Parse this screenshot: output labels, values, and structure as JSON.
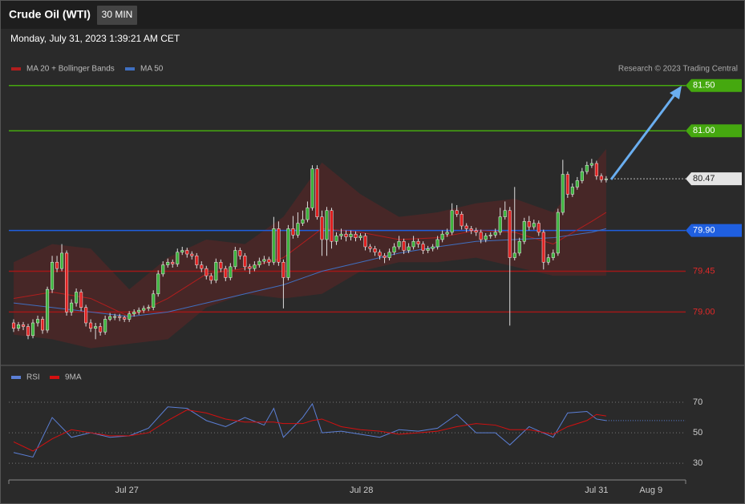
{
  "chart_data": [
    {
      "type": "candlestick",
      "title": "Crude Oil (WTI)",
      "interval": "30 MIN",
      "subtitle": "Monday, July 31, 2023 1:39:21 AM CET",
      "credit": "Research © 2023 Trading Central",
      "up_color": "#3cb33c",
      "down_color": "#e02020",
      "xlim": [
        -1,
        139.5
      ],
      "ylim": [
        78.42,
        81.86
      ],
      "candles": [
        [
          78.88,
          78.92,
          78.78,
          78.82
        ],
        [
          78.82,
          78.89,
          78.79,
          78.86
        ],
        [
          78.86,
          78.89,
          78.8,
          78.84
        ],
        [
          78.84,
          78.87,
          78.7,
          78.74
        ],
        [
          78.74,
          78.92,
          78.71,
          78.88
        ],
        [
          78.88,
          78.96,
          78.84,
          78.92
        ],
        [
          78.92,
          78.95,
          78.76,
          78.8
        ],
        [
          78.8,
          79.28,
          78.77,
          79.25
        ],
        [
          79.25,
          79.62,
          79.21,
          79.55
        ],
        [
          79.55,
          79.62,
          79.44,
          79.48
        ],
        [
          79.48,
          79.75,
          79.45,
          79.65
        ],
        [
          79.65,
          79.68,
          78.96,
          79.0
        ],
        [
          79.0,
          79.14,
          78.96,
          79.1
        ],
        [
          79.1,
          79.26,
          79.06,
          79.22
        ],
        [
          79.22,
          79.25,
          79.01,
          79.05
        ],
        [
          79.05,
          79.08,
          78.84,
          78.88
        ],
        [
          78.88,
          78.92,
          78.78,
          78.82
        ],
        [
          78.82,
          78.88,
          78.7,
          78.84
        ],
        [
          78.84,
          78.88,
          78.74,
          78.78
        ],
        [
          78.78,
          78.96,
          78.75,
          78.92
        ],
        [
          78.92,
          78.99,
          78.9,
          78.95
        ],
        [
          78.95,
          78.98,
          78.91,
          78.95
        ],
        [
          78.95,
          78.98,
          78.9,
          78.94
        ],
        [
          78.94,
          78.96,
          78.89,
          78.92
        ],
        [
          78.92,
          79.01,
          78.89,
          78.98
        ],
        [
          78.98,
          79.03,
          78.95,
          79.0
        ],
        [
          79.0,
          79.05,
          78.97,
          79.02
        ],
        [
          79.02,
          79.07,
          78.99,
          79.04
        ],
        [
          79.04,
          79.08,
          79.01,
          79.05
        ],
        [
          79.05,
          79.24,
          79.02,
          79.2
        ],
        [
          79.2,
          79.46,
          79.17,
          79.42
        ],
        [
          79.42,
          79.56,
          79.39,
          79.52
        ],
        [
          79.52,
          79.59,
          79.49,
          79.55
        ],
        [
          79.55,
          79.58,
          79.49,
          79.53
        ],
        [
          79.53,
          79.7,
          79.5,
          79.66
        ],
        [
          79.66,
          79.72,
          79.63,
          79.68
        ],
        [
          79.68,
          79.71,
          79.6,
          79.64
        ],
        [
          79.64,
          79.67,
          79.58,
          79.62
        ],
        [
          79.62,
          79.65,
          79.48,
          79.52
        ],
        [
          79.52,
          79.56,
          79.44,
          79.48
        ],
        [
          79.48,
          79.51,
          79.36,
          79.4
        ],
        [
          79.4,
          79.43,
          79.31,
          79.35
        ],
        [
          79.35,
          79.59,
          79.32,
          79.55
        ],
        [
          79.55,
          79.58,
          79.44,
          79.48
        ],
        [
          79.48,
          79.51,
          79.34,
          79.38
        ],
        [
          79.38,
          79.54,
          79.35,
          79.5
        ],
        [
          79.5,
          79.72,
          79.47,
          79.68
        ],
        [
          79.68,
          79.71,
          79.58,
          79.62
        ],
        [
          79.62,
          79.65,
          79.46,
          79.5
        ],
        [
          79.5,
          79.53,
          79.42,
          79.48
        ],
        [
          79.48,
          79.56,
          79.45,
          79.52
        ],
        [
          79.52,
          79.6,
          79.49,
          79.56
        ],
        [
          79.56,
          79.62,
          79.53,
          79.58
        ],
        [
          79.58,
          79.61,
          79.51,
          79.55
        ],
        [
          79.55,
          80.05,
          79.52,
          79.92
        ],
        [
          79.92,
          80.0,
          79.51,
          79.55
        ],
        [
          79.55,
          79.58,
          79.04,
          79.38
        ],
        [
          79.38,
          79.96,
          79.35,
          79.92
        ],
        [
          79.92,
          80.06,
          79.81,
          79.85
        ],
        [
          79.85,
          80.1,
          79.82,
          79.98
        ],
        [
          79.98,
          80.12,
          79.95,
          80.02
        ],
        [
          80.02,
          80.22,
          79.99,
          80.15
        ],
        [
          80.15,
          80.62,
          80.12,
          80.58
        ],
        [
          80.58,
          80.62,
          80.02,
          80.05
        ],
        [
          80.05,
          80.12,
          79.62,
          79.8
        ],
        [
          79.8,
          80.16,
          79.62,
          80.12
        ],
        [
          80.12,
          80.15,
          79.7,
          79.78
        ],
        [
          79.78,
          79.88,
          79.74,
          79.84
        ],
        [
          79.84,
          79.92,
          79.8,
          79.86
        ],
        [
          79.86,
          79.9,
          79.78,
          79.83
        ],
        [
          79.83,
          79.9,
          79.79,
          79.86
        ],
        [
          79.86,
          79.89,
          79.78,
          79.82
        ],
        [
          79.82,
          79.87,
          79.79,
          79.84
        ],
        [
          79.84,
          79.87,
          79.68,
          79.72
        ],
        [
          79.72,
          79.75,
          79.66,
          79.7
        ],
        [
          79.7,
          79.73,
          79.62,
          79.66
        ],
        [
          79.66,
          79.69,
          79.58,
          79.62
        ],
        [
          79.62,
          79.65,
          79.54,
          79.6
        ],
        [
          79.6,
          79.7,
          79.57,
          79.66
        ],
        [
          79.66,
          79.76,
          79.63,
          79.72
        ],
        [
          79.72,
          79.84,
          79.69,
          79.78
        ],
        [
          79.78,
          79.81,
          79.64,
          79.68
        ],
        [
          79.68,
          79.76,
          79.65,
          79.72
        ],
        [
          79.72,
          79.84,
          79.69,
          79.78
        ],
        [
          79.78,
          79.81,
          79.71,
          79.75
        ],
        [
          79.75,
          79.78,
          79.64,
          79.68
        ],
        [
          79.68,
          79.73,
          79.65,
          79.7
        ],
        [
          79.7,
          79.75,
          79.67,
          79.72
        ],
        [
          79.72,
          79.84,
          79.69,
          79.8
        ],
        [
          79.8,
          79.9,
          79.77,
          79.86
        ],
        [
          79.86,
          79.92,
          79.83,
          79.88
        ],
        [
          79.88,
          80.2,
          79.85,
          80.12
        ],
        [
          80.12,
          80.18,
          80.05,
          80.08
        ],
        [
          80.08,
          80.11,
          79.91,
          79.95
        ],
        [
          79.95,
          79.98,
          79.88,
          79.92
        ],
        [
          79.92,
          79.95,
          79.86,
          79.9
        ],
        [
          79.9,
          79.93,
          79.84,
          79.88
        ],
        [
          79.88,
          79.91,
          79.76,
          79.8
        ],
        [
          79.8,
          79.87,
          79.77,
          79.84
        ],
        [
          79.84,
          79.88,
          79.81,
          79.85
        ],
        [
          79.85,
          79.92,
          79.82,
          79.88
        ],
        [
          79.88,
          80.15,
          79.85,
          80.05
        ],
        [
          80.05,
          80.22,
          80.02,
          80.12
        ],
        [
          80.12,
          80.16,
          78.85,
          79.6
        ],
        [
          79.6,
          80.38,
          79.57,
          79.65
        ],
        [
          79.65,
          79.82,
          79.62,
          79.78
        ],
        [
          79.78,
          80.04,
          79.75,
          80.0
        ],
        [
          80.0,
          80.06,
          79.9,
          79.94
        ],
        [
          79.94,
          80.02,
          79.91,
          79.98
        ],
        [
          79.98,
          80.01,
          79.84,
          79.88
        ],
        [
          79.88,
          79.91,
          79.47,
          79.55
        ],
        [
          79.55,
          79.64,
          79.52,
          79.6
        ],
        [
          79.6,
          79.69,
          79.57,
          79.65
        ],
        [
          79.65,
          80.14,
          79.62,
          80.1
        ],
        [
          80.1,
          80.68,
          80.07,
          80.52
        ],
        [
          80.52,
          80.55,
          80.26,
          80.3
        ],
        [
          80.3,
          80.42,
          80.27,
          80.38
        ],
        [
          80.38,
          80.49,
          80.35,
          80.45
        ],
        [
          80.45,
          80.59,
          80.42,
          80.55
        ],
        [
          80.55,
          80.66,
          80.52,
          80.62
        ],
        [
          80.62,
          80.69,
          80.59,
          80.64
        ],
        [
          80.64,
          80.67,
          80.46,
          80.5
        ],
        [
          80.5,
          80.53,
          80.43,
          80.46
        ],
        [
          80.46,
          80.5,
          80.43,
          80.47
        ]
      ],
      "overlays": {
        "x": [
          0,
          8,
          16,
          24,
          32,
          40,
          48,
          56,
          64,
          72,
          80,
          88,
          96,
          104,
          112,
          120,
          123
        ],
        "series": [
          {
            "name": "MA 20 + Bollinger Bands",
            "color": "#b01e1e",
            "values": [
              79.15,
              79.22,
              79.15,
              78.95,
              79.15,
              79.42,
              79.48,
              79.6,
              79.92,
              79.88,
              79.8,
              79.82,
              79.9,
              79.88,
              79.75,
              80.0,
              80.1
            ],
            "upper": [
              79.55,
              79.75,
              79.7,
              79.25,
              79.6,
              79.8,
              79.75,
              80.05,
              80.65,
              80.3,
              80.05,
              80.1,
              80.2,
              80.25,
              80.1,
              80.6,
              80.8
            ],
            "lower": [
              78.75,
              78.7,
              78.6,
              78.65,
              78.7,
              79.05,
              79.2,
              79.15,
              79.2,
              79.45,
              79.55,
              79.55,
              79.6,
              79.5,
              79.4,
              79.4,
              79.4
            ]
          },
          {
            "name": "MA 50",
            "color": "#3f6fc0",
            "values": [
              79.1,
              79.05,
              79.0,
              78.95,
              79.0,
              79.1,
              79.2,
              79.3,
              79.45,
              79.55,
              79.65,
              79.72,
              79.78,
              79.8,
              79.82,
              79.88,
              79.92
            ]
          }
        ]
      },
      "levels": [
        {
          "value": 81.5,
          "label": "81.50",
          "color": "#45a80f",
          "text_color": "#ffffff",
          "style": "box",
          "line": "solid"
        },
        {
          "value": 81.0,
          "label": "81.00",
          "color": "#45a80f",
          "text_color": "#ffffff",
          "style": "box",
          "line": "solid"
        },
        {
          "value": 80.47,
          "label": "80.47",
          "color": "#e4e4e4",
          "text_color": "#222222",
          "style": "box",
          "line": "dotted"
        },
        {
          "value": 79.9,
          "label": "79.90",
          "color": "#1f5fe0",
          "text_color": "#ffffff",
          "style": "box",
          "line": "solid"
        },
        {
          "value": 79.45,
          "label": "79.45",
          "color": "#a01818",
          "text_color": "#e02828",
          "style": "text",
          "line": "solid"
        },
        {
          "value": 79.0,
          "label": "79.00",
          "color": "#a01818",
          "text_color": "#e02828",
          "style": "text",
          "line": "solid"
        }
      ]
    },
    {
      "type": "line",
      "xlim": [
        -1,
        139.5
      ],
      "ylim": [
        21.1,
        81.6
      ],
      "yticks": [
        30,
        50,
        70
      ],
      "x": [
        0,
        4,
        8,
        12,
        16,
        20,
        24,
        28,
        32,
        36,
        40,
        44,
        48,
        52,
        54,
        56,
        60,
        62,
        64,
        68,
        72,
        76,
        80,
        84,
        88,
        92,
        96,
        100,
        103,
        107,
        112,
        115,
        119,
        121,
        123
      ],
      "series": [
        {
          "name": "RSI",
          "color": "#5b7fd6",
          "values": [
            37,
            34,
            60,
            47,
            50,
            47,
            48,
            53,
            67,
            66,
            58,
            54,
            60,
            55,
            66,
            47,
            60,
            69,
            50,
            51,
            49,
            47,
            52,
            51,
            53,
            62,
            50,
            50,
            42,
            54,
            47,
            63,
            64,
            59,
            58
          ]
        },
        {
          "name": "9MA",
          "color": "#d41010",
          "values": [
            44,
            38,
            46,
            52,
            50,
            48,
            48,
            50,
            58,
            65,
            63,
            59,
            57,
            57,
            57,
            56,
            56,
            58,
            59,
            54,
            52,
            51,
            49,
            50,
            51,
            54,
            56,
            55,
            52,
            52,
            49,
            54,
            58,
            62,
            61
          ]
        }
      ],
      "xticks": [
        {
          "value": 23.5,
          "label": "Jul 27"
        },
        {
          "value": 72.2,
          "label": "Jul 28"
        },
        {
          "value": 121,
          "label": "Jul 31"
        },
        {
          "value": 132.3,
          "label": "Aug 9"
        }
      ]
    }
  ]
}
